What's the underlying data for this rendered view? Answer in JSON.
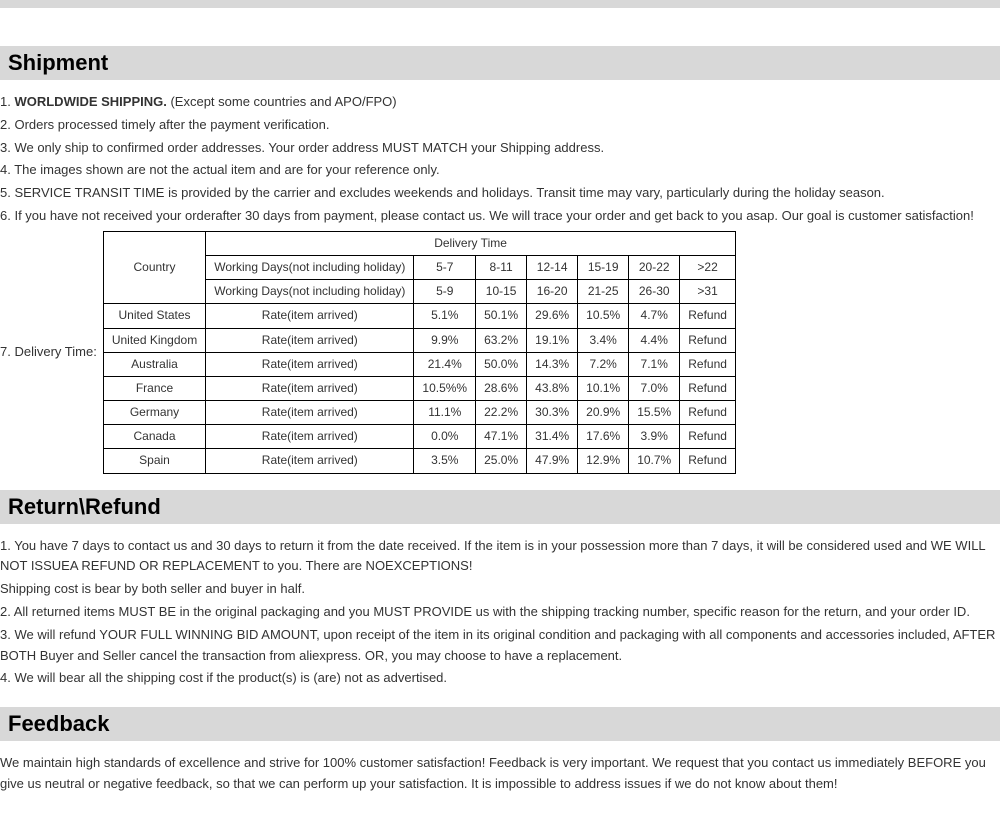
{
  "sections": {
    "shipment": {
      "title": "Shipment",
      "item1_prefix": "1. ",
      "item1_bold": "WORLDWIDE SHIPPING.",
      "item1_rest": " (Except some countries and APO/FPO)",
      "item2": "2. Orders processed timely after the payment verification.",
      "item3": "3. We only ship to confirmed order addresses. Your order address MUST MATCH your Shipping address.",
      "item4": "4. The images shown are not the actual item and are for your reference only.",
      "item5": "5. SERVICE TRANSIT TIME is provided by the carrier and excludes weekends and holidays. Transit time may vary, particularly during the holiday season.",
      "item6": "6. If you have not received your orderafter 30 days from payment, please contact us. We will trace your order and get back to   you asap. Our goal is customer satisfaction!",
      "delivery_label": "7. Delivery Time:"
    },
    "return": {
      "title": "Return\\Refund",
      "p1": "1. You have 7 days to contact us and 30 days to return it from the date received. If the item is in your possession more than 7 days, it will be considered used and WE WILL NOT ISSUEA REFUND OR REPLACEMENT to you. There are NOEXCEPTIONS!",
      "p1b": "Shipping cost is bear by both seller and buyer in half.",
      "p2": "2. All returned items MUST BE in the original packaging and you MUST PROVIDE us with the shipping tracking number, specific reason for the return, and your order ID.",
      "p3": "3. We will refund YOUR FULL WINNING BID AMOUNT, upon receipt of the item in its original condition and packaging with all components and accessories included, AFTER BOTH Buyer and Seller cancel the transaction from aliexpress. OR, you may choose to have a replacement.",
      "p4": "4. We will bear all the shipping cost if the product(s) is (are) not as advertised."
    },
    "feedback": {
      "title": "Feedback",
      "p1": "We maintain high standards of excellence and strive for 100% customer satisfaction! Feedback is very important. We request that you contact us immediately BEFORE you give us neutral or negative feedback, so that we can perform up your satisfaction. It is impossible to address issues if we do not know about them!"
    }
  },
  "table": {
    "header_main": "Delivery Time",
    "country_label": "Country",
    "header_row1": [
      "Working Days(not including holiday)",
      "5-7",
      "8-11",
      "12-14",
      "15-19",
      "20-22",
      ">22"
    ],
    "header_row2": [
      "Working Days(not including holiday)",
      "5-9",
      "10-15",
      "16-20",
      "21-25",
      "26-30",
      ">31"
    ],
    "rows": [
      {
        "country": "United States",
        "label": "Rate(item arrived)",
        "vals": [
          "5.1%",
          "50.1%",
          "29.6%",
          "10.5%",
          "4.7%",
          "Refund"
        ]
      },
      {
        "country": "United Kingdom",
        "label": "Rate(item arrived)",
        "vals": [
          "9.9%",
          "63.2%",
          "19.1%",
          "3.4%",
          "4.4%",
          "Refund"
        ]
      },
      {
        "country": "Australia",
        "label": "Rate(item arrived)",
        "vals": [
          "21.4%",
          "50.0%",
          "14.3%",
          "7.2%",
          "7.1%",
          "Refund"
        ]
      },
      {
        "country": "France",
        "label": "Rate(item arrived)",
        "vals": [
          "10.5%%",
          "28.6%",
          "43.8%",
          "10.1%",
          "7.0%",
          "Refund"
        ]
      },
      {
        "country": "Germany",
        "label": "Rate(item arrived)",
        "vals": [
          "11.1%",
          "22.2%",
          "30.3%",
          "20.9%",
          "15.5%",
          "Refund"
        ]
      },
      {
        "country": "Canada",
        "label": "Rate(item arrived)",
        "vals": [
          "0.0%",
          "47.1%",
          "31.4%",
          "17.6%",
          "3.9%",
          "Refund"
        ]
      },
      {
        "country": "Spain",
        "label": "Rate(item arrived)",
        "vals": [
          "3.5%",
          "25.0%",
          "47.9%",
          "12.9%",
          "10.7%",
          "Refund"
        ]
      }
    ]
  }
}
